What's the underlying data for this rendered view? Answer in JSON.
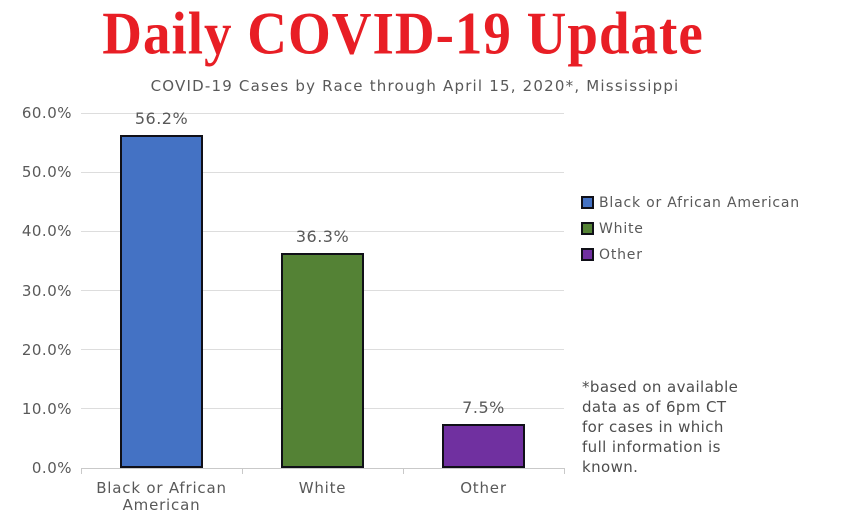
{
  "page": {
    "title": "Daily COVID-19 Update"
  },
  "chart_data": {
    "type": "bar",
    "title": "COVID-19 Cases by Race through April 15, 2020*, Mississippi",
    "categories": [
      "Black or African American",
      "White",
      "Other"
    ],
    "values": [
      56.2,
      36.3,
      7.5
    ],
    "value_labels": [
      "56.2%",
      "36.3%",
      "7.5%"
    ],
    "bar_colors": [
      "#4472C4",
      "#548235",
      "#7030A0"
    ],
    "ylim": [
      0,
      60
    ],
    "yticks": [
      0,
      10,
      20,
      30,
      40,
      50,
      60
    ],
    "ytick_labels": [
      "0.0%",
      "10.0%",
      "20.0%",
      "30.0%",
      "40.0%",
      "50.0%",
      "60.0%"
    ],
    "grid": true,
    "legend_position": "right",
    "legend": [
      {
        "label": "Black or African American",
        "color": "#4472C4"
      },
      {
        "label": "White",
        "color": "#548235"
      },
      {
        "label": "Other",
        "color": "#7030A0"
      }
    ],
    "footnote_lines": [
      "*based on available",
      "data as of 6pm CT",
      "for cases in which",
      "full information is",
      "known."
    ]
  },
  "colors": {
    "title_red": "#E81E25",
    "text_gray": "#595959",
    "footnote_gray": "#4D4D4D",
    "grid_gray": "#DDDDDD",
    "axis_gray": "#C9C9C9",
    "bar_border": "#101018",
    "background": "#FFFFFF"
  }
}
